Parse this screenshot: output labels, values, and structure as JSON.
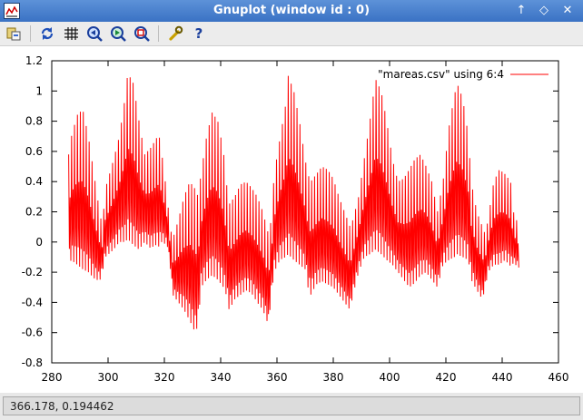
{
  "window": {
    "title": "Gnuplot (window id : 0)",
    "controls": [
      "up-arrow-icon",
      "restore-icon",
      "close-icon"
    ]
  },
  "toolbar": {
    "items": [
      {
        "name": "export-button",
        "icon": "export-icon"
      },
      {
        "name": "replot-button",
        "icon": "replot-icon"
      },
      {
        "name": "grid-button",
        "icon": "grid-icon"
      },
      {
        "name": "zoom-back-button",
        "icon": "zoom-back-icon"
      },
      {
        "name": "zoom-forward-button",
        "icon": "zoom-forward-icon"
      },
      {
        "name": "autoscale-button",
        "icon": "autoscale-icon"
      },
      {
        "name": "settings-button",
        "icon": "wrench-icon"
      },
      {
        "name": "help-button",
        "icon": "help-icon"
      }
    ]
  },
  "status": {
    "coordinates": "366.178,  0.194462"
  },
  "chart_data": {
    "type": "line",
    "title": "",
    "xlabel": "",
    "ylabel": "",
    "xlim": [
      280,
      460
    ],
    "ylim": [
      -0.8,
      1.2
    ],
    "xticks": [
      "280",
      "300",
      "320",
      "340",
      "360",
      "380",
      "400",
      "420",
      "440",
      "460"
    ],
    "yticks": [
      "-0.8",
      "-0.6",
      "-0.4",
      "-0.2",
      "0",
      "0.2",
      "0.4",
      "0.6",
      "0.8",
      "1",
      "1.2"
    ],
    "grid": false,
    "legend_position": "top-right",
    "series": [
      {
        "name": "\"mareas.csv\" using 6:4",
        "color": "#ff0000",
        "x_start": 286,
        "x_end": 446,
        "period": 0.52,
        "envelope": [
          [
            286,
            0.58,
            -0.14
          ],
          [
            287,
            0.7,
            -0.12
          ],
          [
            289,
            0.84,
            -0.15
          ],
          [
            291,
            0.88,
            -0.18
          ],
          [
            293,
            0.7,
            -0.2
          ],
          [
            295,
            0.45,
            -0.24
          ],
          [
            297,
            0.2,
            -0.26
          ],
          [
            298,
            0.1,
            -0.2
          ],
          [
            299,
            0.35,
            -0.1
          ],
          [
            302,
            0.55,
            -0.05
          ],
          [
            304,
            0.7,
            0.0
          ],
          [
            306,
            0.95,
            0.0
          ],
          [
            307,
            1.12,
            0.02
          ],
          [
            309,
            1.05,
            -0.02
          ],
          [
            311,
            0.8,
            -0.05
          ],
          [
            313,
            0.58,
            0.0
          ],
          [
            315,
            0.62,
            -0.04
          ],
          [
            317,
            0.68,
            -0.02
          ],
          [
            318,
            0.72,
            -0.03
          ],
          [
            319,
            0.6,
            0.0
          ],
          [
            321,
            0.3,
            -0.02
          ],
          [
            322,
            0.1,
            -0.15
          ],
          [
            323,
            0.02,
            -0.35
          ],
          [
            325,
            0.15,
            -0.4
          ],
          [
            327,
            0.3,
            -0.45
          ],
          [
            329,
            0.4,
            -0.52
          ],
          [
            331,
            0.35,
            -0.6
          ],
          [
            332,
            0.3,
            -0.55
          ],
          [
            333,
            0.45,
            -0.3
          ],
          [
            335,
            0.7,
            -0.25
          ],
          [
            337,
            0.86,
            -0.22
          ],
          [
            339,
            0.8,
            -0.25
          ],
          [
            341,
            0.6,
            -0.3
          ],
          [
            342,
            0.4,
            -0.35
          ],
          [
            343,
            0.25,
            -0.45
          ],
          [
            345,
            0.3,
            -0.38
          ],
          [
            347,
            0.38,
            -0.35
          ],
          [
            349,
            0.4,
            -0.32
          ],
          [
            351,
            0.36,
            -0.34
          ],
          [
            353,
            0.3,
            -0.4
          ],
          [
            355,
            0.2,
            -0.45
          ],
          [
            357,
            0.05,
            -0.55
          ],
          [
            358,
            0.15,
            -0.35
          ],
          [
            359,
            0.45,
            -0.2
          ],
          [
            361,
            0.68,
            -0.12
          ],
          [
            363,
            0.9,
            -0.1
          ],
          [
            364,
            1.1,
            -0.08
          ],
          [
            366,
            1.0,
            -0.12
          ],
          [
            368,
            0.8,
            -0.15
          ],
          [
            370,
            0.55,
            -0.18
          ],
          [
            371,
            0.45,
            -0.3
          ],
          [
            372,
            0.4,
            -0.35
          ],
          [
            374,
            0.45,
            -0.28
          ],
          [
            376,
            0.5,
            -0.26
          ],
          [
            378,
            0.48,
            -0.28
          ],
          [
            380,
            0.42,
            -0.3
          ],
          [
            382,
            0.3,
            -0.35
          ],
          [
            384,
            0.2,
            -0.4
          ],
          [
            386,
            0.1,
            -0.45
          ],
          [
            387,
            0.15,
            -0.35
          ],
          [
            389,
            0.3,
            -0.2
          ],
          [
            391,
            0.55,
            -0.1
          ],
          [
            393,
            0.8,
            -0.08
          ],
          [
            395,
            1.08,
            -0.05
          ],
          [
            397,
            1.0,
            -0.08
          ],
          [
            399,
            0.8,
            -0.12
          ],
          [
            401,
            0.55,
            -0.15
          ],
          [
            403,
            0.4,
            -0.2
          ],
          [
            405,
            0.42,
            -0.25
          ],
          [
            407,
            0.48,
            -0.3
          ],
          [
            409,
            0.55,
            -0.27
          ],
          [
            411,
            0.58,
            -0.22
          ],
          [
            413,
            0.5,
            -0.2
          ],
          [
            415,
            0.4,
            -0.25
          ],
          [
            417,
            0.2,
            -0.3
          ],
          [
            419,
            0.4,
            -0.15
          ],
          [
            421,
            0.75,
            -0.12
          ],
          [
            423,
            0.97,
            -0.1
          ],
          [
            424,
            1.05,
            -0.08
          ],
          [
            426,
            0.95,
            -0.1
          ],
          [
            428,
            0.7,
            -0.12
          ],
          [
            429,
            0.4,
            -0.25
          ],
          [
            431,
            0.2,
            -0.32
          ],
          [
            433,
            0.1,
            -0.38
          ],
          [
            434,
            0.05,
            -0.3
          ],
          [
            435,
            0.15,
            -0.2
          ],
          [
            437,
            0.4,
            -0.15
          ],
          [
            439,
            0.48,
            -0.15
          ],
          [
            441,
            0.45,
            -0.12
          ],
          [
            443,
            0.4,
            -0.16
          ],
          [
            444,
            0.2,
            -0.14
          ],
          [
            446,
            0.1,
            -0.17
          ]
        ]
      }
    ]
  }
}
